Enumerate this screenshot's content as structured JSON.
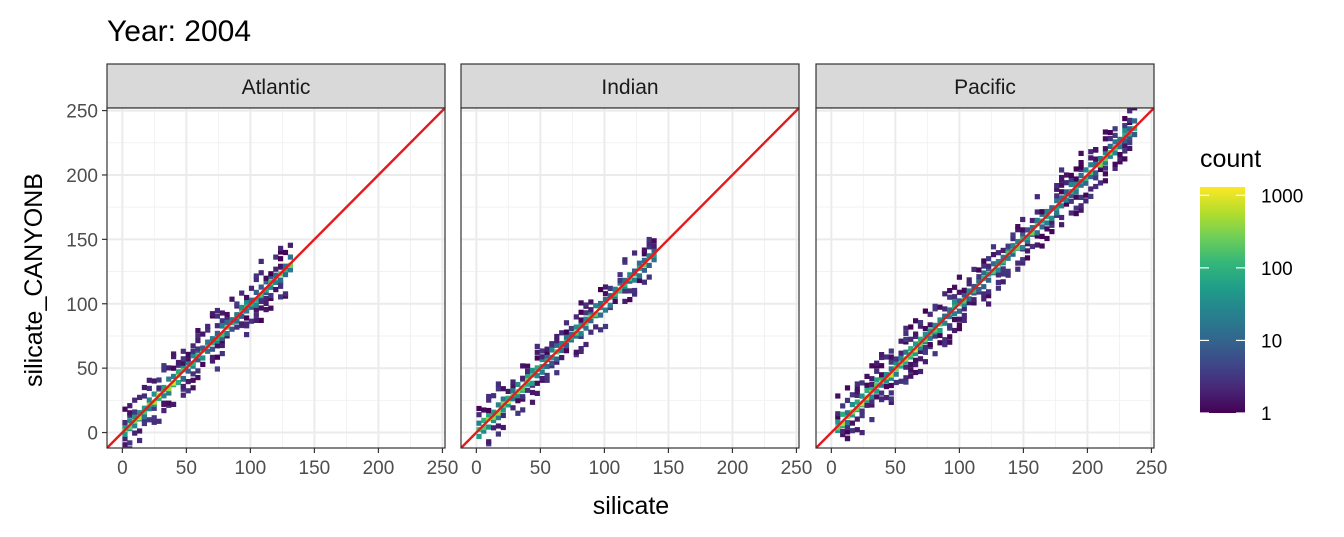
{
  "chart_data": {
    "type": "heatmap",
    "title": "Year: 2004",
    "xlabel": "silicate",
    "ylabel": "silicate_CANYONB",
    "xlim": [
      -12,
      252
    ],
    "ylim": [
      -12,
      252
    ],
    "x_ticks": [
      "0",
      "50",
      "100",
      "150",
      "200",
      "250"
    ],
    "y_ticks": [
      "0",
      "50",
      "100",
      "150",
      "200",
      "250"
    ],
    "tick_values": [
      0,
      50,
      100,
      150,
      200,
      250
    ],
    "grid": true,
    "reference_line": {
      "slope": 1,
      "intercept": 0,
      "color": "#e41a1c"
    },
    "panels": [
      {
        "name": "Atlantic",
        "x_range": [
          0,
          130
        ],
        "spread": 4
      },
      {
        "name": "Indian",
        "x_range": [
          0,
          137
        ],
        "spread": 3
      },
      {
        "name": "Pacific",
        "x_range": [
          3,
          237
        ],
        "spread": 4
      }
    ],
    "legend": {
      "title": "count",
      "position": "right",
      "scale": "log10",
      "breaks": [
        "1",
        "10",
        "100",
        "1000"
      ],
      "break_values": [
        1,
        10,
        100,
        1000
      ],
      "colors": [
        "#440154",
        "#482878",
        "#3e4989",
        "#31688e",
        "#26828e",
        "#1f9e89",
        "#35b779",
        "#6ece58",
        "#b5de2b",
        "#fde725"
      ]
    }
  }
}
